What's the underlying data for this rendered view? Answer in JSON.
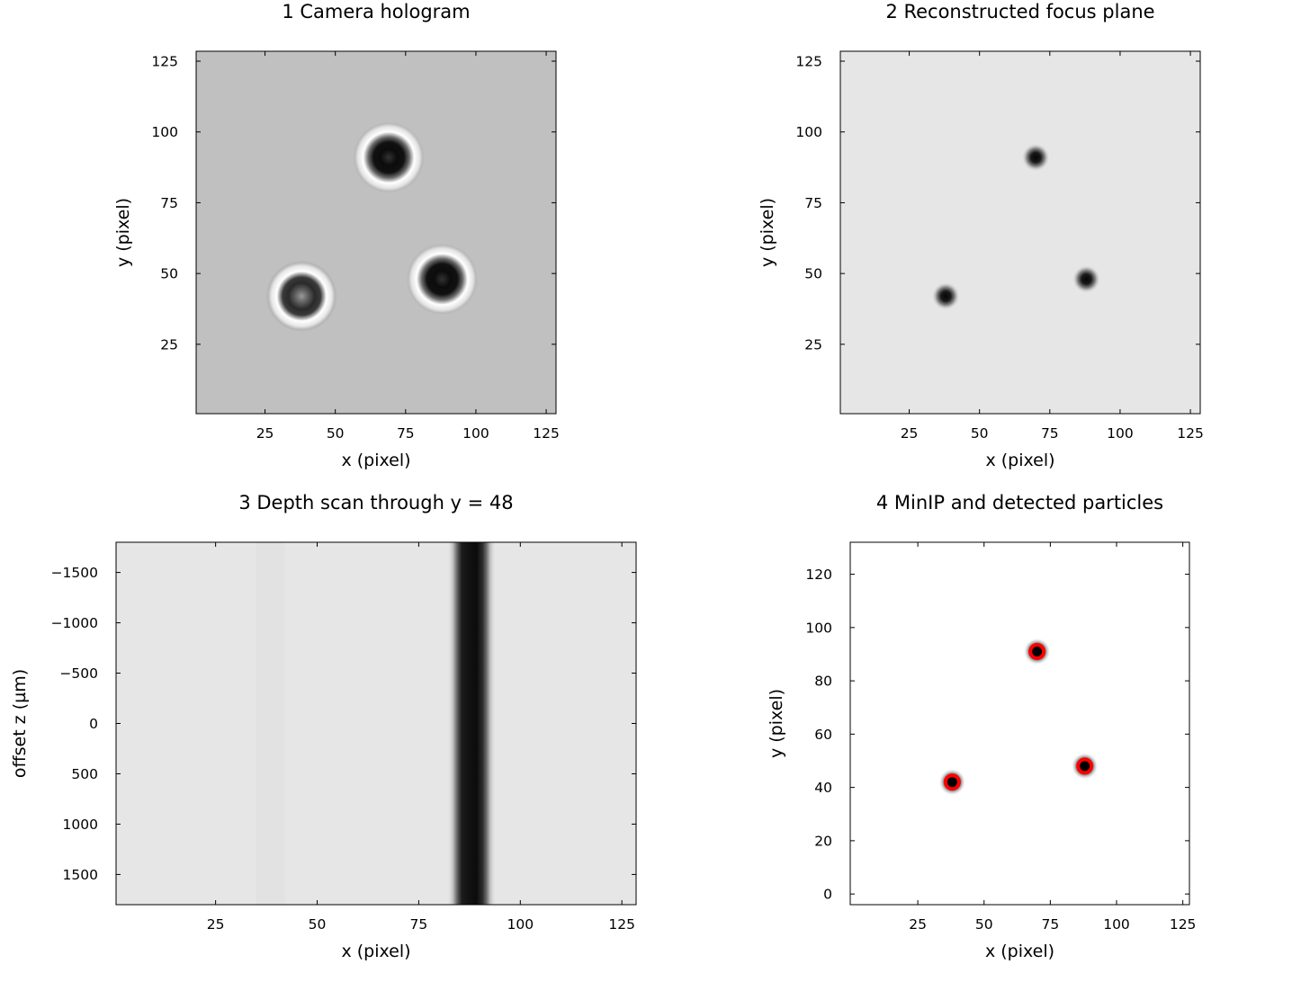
{
  "colors": {
    "background": "#ffffff",
    "hologram_background": "#c0c0c0",
    "focus_background": "#e6e6e6",
    "particle_dark": "#101010",
    "marker_ring": "#ff0000",
    "marker_center": "#000000"
  },
  "chart_data": [
    {
      "type": "heatmap",
      "title": "1  Camera hologram",
      "xlabel": "x (pixel)",
      "ylabel": "y (pixel)",
      "xlim": [
        0.5,
        128.5
      ],
      "ylim": [
        128.5,
        0.5
      ],
      "xticks": [
        25,
        50,
        75,
        100,
        125
      ],
      "yticks": [
        25,
        50,
        75,
        100,
        125
      ],
      "colormap": "grays",
      "particles": [
        {
          "x": 38,
          "y": 42,
          "contrast": "ringed"
        },
        {
          "x": 88,
          "y": 48,
          "contrast": "ringed"
        },
        {
          "x": 69,
          "y": 91,
          "contrast": "ringed"
        }
      ]
    },
    {
      "type": "heatmap",
      "title": "2  Reconstructed focus plane",
      "xlabel": "x (pixel)",
      "ylabel": "y (pixel)",
      "xlim": [
        0.5,
        128.5
      ],
      "ylim": [
        128.5,
        0.5
      ],
      "xticks": [
        25,
        50,
        75,
        100,
        125
      ],
      "yticks": [
        25,
        50,
        75,
        100,
        125
      ],
      "colormap": "grays",
      "particles": [
        {
          "x": 38,
          "y": 42
        },
        {
          "x": 88,
          "y": 48
        },
        {
          "x": 70,
          "y": 91
        }
      ]
    },
    {
      "type": "heatmap",
      "title": "3  Depth scan through y = 48",
      "xlabel": "x (pixel)",
      "ylabel": "offset z (µm)",
      "xlim": [
        0.5,
        128.5
      ],
      "ylim": [
        -1800,
        1800
      ],
      "xticks": [
        25,
        50,
        75,
        100,
        125
      ],
      "yticks": [
        1500,
        1000,
        500,
        0,
        -500,
        -1000,
        -1500
      ],
      "ytick_labels": [
        "1500",
        "1000",
        "500",
        "0",
        "−5̰00",
        "−1000",
        "−1500"
      ],
      "colormap": "grays",
      "dark_band_x": [
        82,
        94
      ],
      "dark_band_center": 88,
      "faint_band_x": [
        35,
        42
      ]
    },
    {
      "type": "scatter",
      "title": "4  MinIP and detected particles",
      "xlabel": "x (pixel)",
      "ylabel": "y (pixel)",
      "xlim": [
        -0.5,
        127.5
      ],
      "ylim": [
        132,
        -4
      ],
      "xticks": [
        25,
        50,
        75,
        100,
        125
      ],
      "yticks": [
        0,
        20,
        40,
        60,
        80,
        100,
        120
      ],
      "background_image": "minimum intensity projection",
      "detected": [
        {
          "x": 38,
          "y": 42
        },
        {
          "x": 88,
          "y": 48
        },
        {
          "x": 70,
          "y": 91
        }
      ]
    }
  ]
}
